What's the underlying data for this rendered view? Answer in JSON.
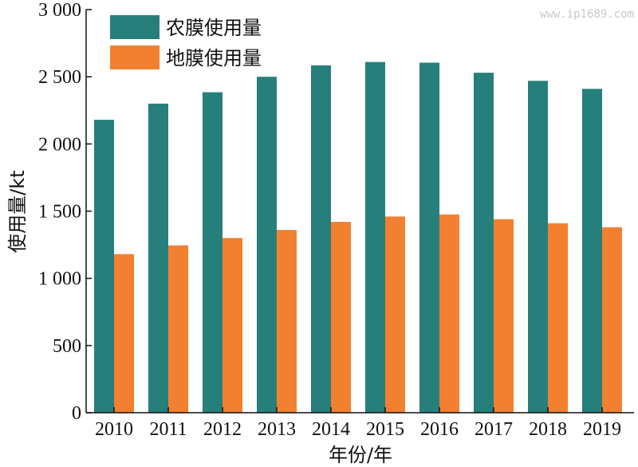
{
  "watermark": "www.ip1689.com",
  "chart_data": {
    "type": "bar",
    "title": "",
    "xlabel": "年份/年",
    "ylabel": "使用量/kt",
    "ylim": [
      0,
      3000
    ],
    "yticks": [
      0,
      500,
      1000,
      1500,
      2000,
      2500,
      3000
    ],
    "ytick_labels": [
      "0",
      "500",
      "1 000",
      "1 500",
      "2 000",
      "2 500",
      "3 000"
    ],
    "categories": [
      "2010",
      "2011",
      "2012",
      "2013",
      "2014",
      "2015",
      "2016",
      "2017",
      "2018",
      "2019"
    ],
    "legend_position": "top-left",
    "series": [
      {
        "name": "农膜使用量",
        "color": "#267f7b",
        "values": [
          2180,
          2300,
          2385,
          2500,
          2585,
          2610,
          2605,
          2530,
          2470,
          2410
        ]
      },
      {
        "name": "地膜使用量",
        "color": "#f28030",
        "values": [
          1180,
          1245,
          1300,
          1360,
          1420,
          1460,
          1475,
          1440,
          1410,
          1380
        ]
      }
    ]
  }
}
